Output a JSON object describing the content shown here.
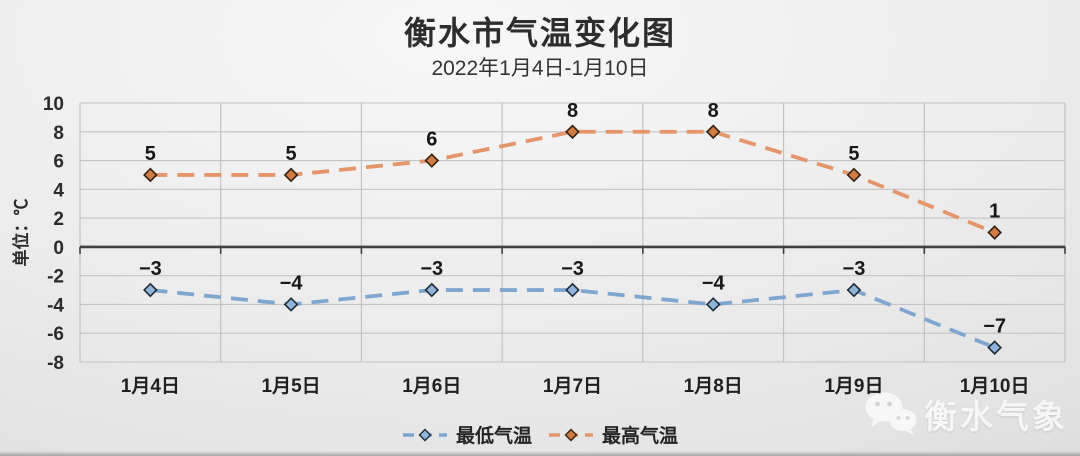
{
  "chart_data": {
    "type": "line",
    "title": "衡水市气温变化图",
    "subtitle": "2022年1月4日-1月10日",
    "ylabel": "单位：℃",
    "xlabel": "",
    "categories": [
      "1月4日",
      "1月5日",
      "1月6日",
      "1月7日",
      "1月8日",
      "1月9日",
      "1月10日"
    ],
    "series": [
      {
        "name": "最低气温",
        "values": [
          -3,
          -4,
          -3,
          -3,
          -4,
          -3,
          -7
        ],
        "labels": [
          "−3",
          "−4",
          "−3",
          "−3",
          "−4",
          "−3",
          "−7"
        ],
        "line_color": "#7FA6D1",
        "marker_fill": "#8FB4DC",
        "marker_stroke": "#1f2a33"
      },
      {
        "name": "最高气温",
        "values": [
          5,
          5,
          6,
          8,
          8,
          5,
          1
        ],
        "labels": [
          "5",
          "5",
          "6",
          "8",
          "8",
          "5",
          "1"
        ],
        "line_color": "#E4956A",
        "marker_fill": "#D07C42",
        "marker_stroke": "#33200f"
      }
    ],
    "ylim": [
      -8,
      10
    ],
    "ytick_step": 2,
    "line_style": "dashed",
    "marker": "diamond",
    "grid": true,
    "legend_position": "bottom",
    "grid_color": "#c3c3c3",
    "axis_line_color": "#3f3f3f"
  },
  "watermark": {
    "icon": "wechat-icon",
    "text": "衡水气象"
  }
}
